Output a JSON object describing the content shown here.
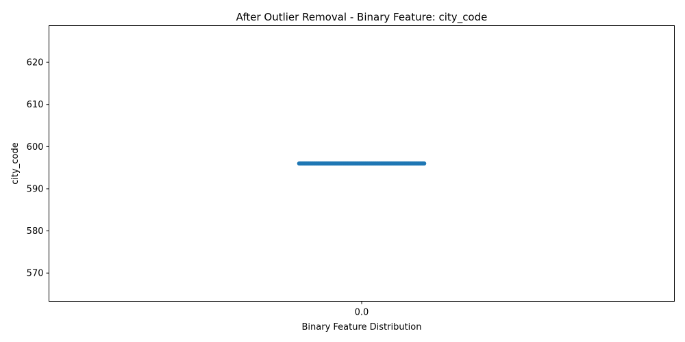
{
  "chart_data": {
    "type": "strip",
    "title": "After Outlier Removal - Binary Feature: city_code",
    "xlabel": "Binary Feature Distribution",
    "ylabel": "city_code",
    "categories": [
      "0.0"
    ],
    "y_constant": 596,
    "x_jitter_range": [
      -0.1,
      0.1
    ],
    "n_points": 120,
    "xlim": [
      -0.5,
      0.5
    ],
    "ylim": [
      563.3,
      628.7
    ],
    "yticks": [
      570,
      580,
      590,
      600,
      610,
      620
    ],
    "grid": false,
    "legend": "none",
    "colors": {
      "marker": "#1f77b4",
      "axes": "#000000",
      "background": "#ffffff"
    }
  }
}
